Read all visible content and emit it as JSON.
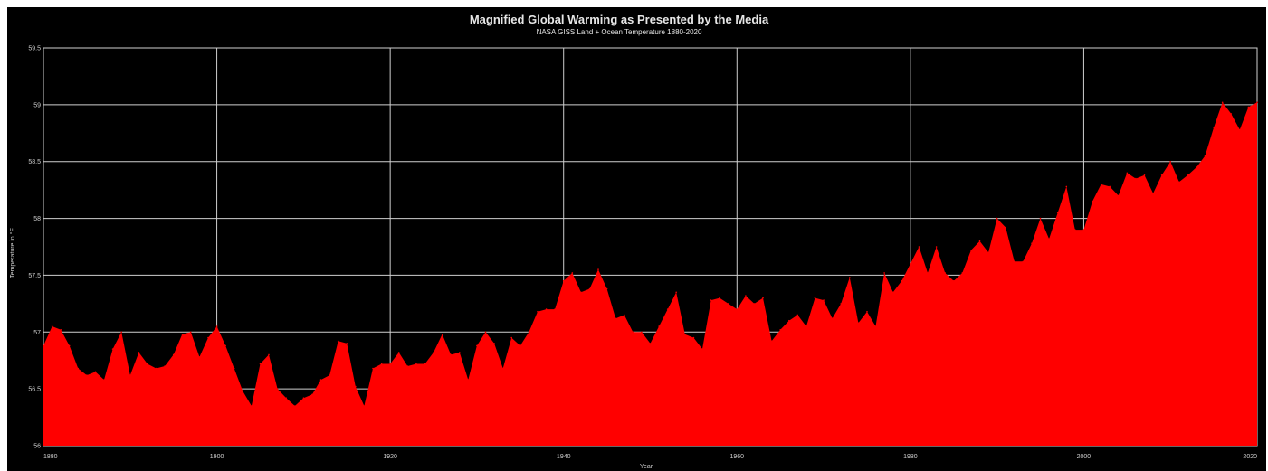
{
  "chart_data": {
    "type": "area",
    "title": "Magnified Global Warming as Presented by the Media",
    "subtitle": "NASA GISS Land + Ocean Temperature 1880-2020",
    "xlabel": "Year",
    "ylabel": "Temperature in °F",
    "xlim": [
      1880,
      2020
    ],
    "ylim": [
      56,
      59.5
    ],
    "xticks": [
      "1880",
      "1900",
      "1920",
      "1940",
      "1960",
      "1980",
      "2000",
      "2020"
    ],
    "yticks": [
      "56",
      "56.5",
      "57",
      "57.5",
      "58",
      "58.5",
      "59",
      "59.5"
    ],
    "grid": true,
    "colors": {
      "fill": "#ff0000",
      "background": "#000000",
      "grid": "#cfcfcf"
    },
    "x": [
      1880,
      1881,
      1882,
      1883,
      1884,
      1885,
      1886,
      1887,
      1888,
      1889,
      1890,
      1891,
      1892,
      1893,
      1894,
      1895,
      1896,
      1897,
      1898,
      1899,
      1900,
      1901,
      1902,
      1903,
      1904,
      1905,
      1906,
      1907,
      1908,
      1909,
      1910,
      1911,
      1912,
      1913,
      1914,
      1915,
      1916,
      1917,
      1918,
      1919,
      1920,
      1921,
      1922,
      1923,
      1924,
      1925,
      1926,
      1927,
      1928,
      1929,
      1930,
      1931,
      1932,
      1933,
      1934,
      1935,
      1936,
      1937,
      1938,
      1939,
      1940,
      1941,
      1942,
      1943,
      1944,
      1945,
      1946,
      1947,
      1948,
      1949,
      1950,
      1951,
      1952,
      1953,
      1954,
      1955,
      1956,
      1957,
      1958,
      1959,
      1960,
      1961,
      1962,
      1963,
      1964,
      1965,
      1966,
      1967,
      1968,
      1969,
      1970,
      1971,
      1972,
      1973,
      1974,
      1975,
      1976,
      1977,
      1978,
      1979,
      1980,
      1981,
      1982,
      1983,
      1984,
      1985,
      1986,
      1987,
      1988,
      1989,
      1990,
      1991,
      1992,
      1993,
      1994,
      1995,
      1996,
      1997,
      1998,
      1999,
      2000,
      2001,
      2002,
      2003,
      2004,
      2005,
      2006,
      2007,
      2008,
      2009,
      2010,
      2011,
      2012,
      2013,
      2014,
      2015,
      2016,
      2017,
      2018,
      2019,
      2020
    ],
    "y": [
      56.88,
      57.05,
      57.02,
      56.88,
      56.68,
      56.62,
      56.65,
      56.58,
      56.85,
      57.0,
      56.62,
      56.82,
      56.72,
      56.68,
      56.7,
      56.8,
      56.98,
      57.0,
      56.78,
      56.95,
      57.05,
      56.88,
      56.68,
      56.48,
      56.35,
      56.72,
      56.8,
      56.5,
      56.42,
      56.35,
      56.42,
      56.45,
      56.58,
      56.62,
      56.92,
      56.9,
      56.52,
      56.35,
      56.68,
      56.72,
      56.72,
      56.82,
      56.7,
      56.72,
      56.72,
      56.82,
      56.98,
      56.8,
      56.82,
      56.58,
      56.88,
      57.0,
      56.9,
      56.68,
      56.95,
      56.88,
      57.0,
      57.18,
      57.2,
      57.2,
      57.45,
      57.52,
      57.35,
      57.38,
      57.55,
      57.38,
      57.12,
      57.15,
      57.0,
      57.0,
      56.9,
      57.05,
      57.2,
      57.35,
      56.98,
      56.95,
      56.85,
      57.28,
      57.3,
      57.25,
      57.2,
      57.32,
      57.25,
      57.3,
      56.92,
      57.02,
      57.1,
      57.15,
      57.05,
      57.3,
      57.28,
      57.12,
      57.25,
      57.48,
      57.08,
      57.18,
      57.05,
      57.52,
      57.35,
      57.45,
      57.6,
      57.75,
      57.52,
      57.75,
      57.52,
      57.45,
      57.52,
      57.72,
      57.8,
      57.7,
      58.0,
      57.92,
      57.62,
      57.62,
      57.78,
      58.0,
      57.82,
      58.05,
      58.28,
      57.9,
      57.9,
      58.15,
      58.3,
      58.28,
      58.2,
      58.4,
      58.35,
      58.38,
      58.22,
      58.38,
      58.5,
      58.32,
      58.38,
      58.45,
      58.55,
      58.8,
      59.02,
      58.92,
      58.78,
      58.98,
      59.02
    ]
  }
}
